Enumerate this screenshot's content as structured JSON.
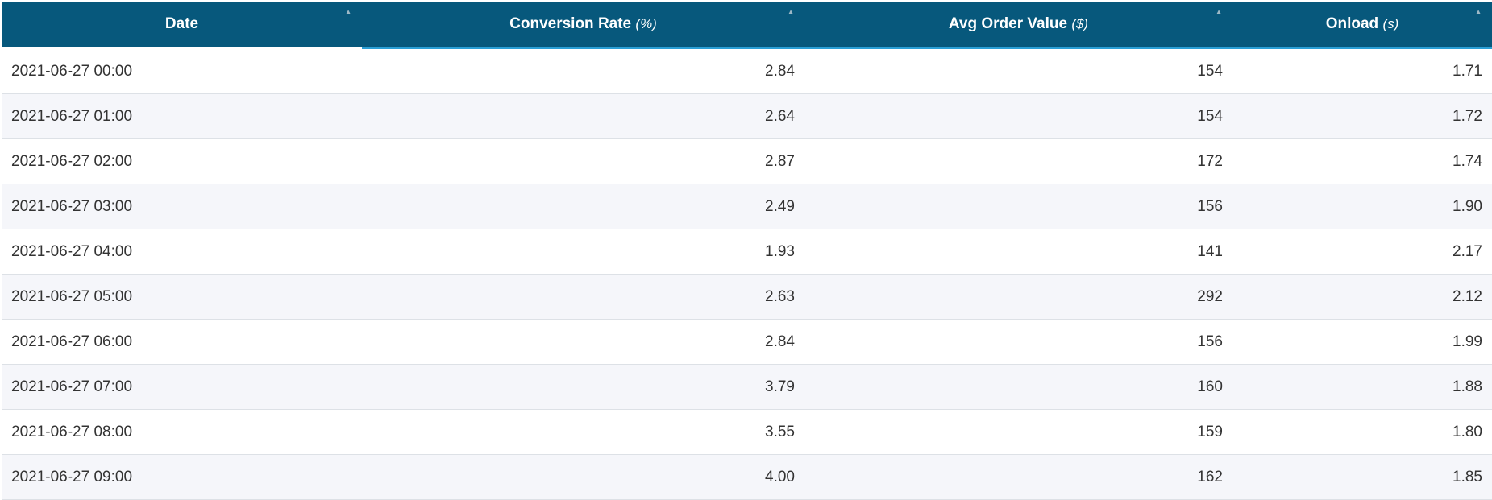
{
  "table": {
    "columns": [
      {
        "label": "Date",
        "unit": ""
      },
      {
        "label": "Conversion Rate",
        "unit": "(%)"
      },
      {
        "label": "Avg Order Value",
        "unit": "($)"
      },
      {
        "label": "Onload",
        "unit": "(s)"
      }
    ],
    "sort_icon": "▲",
    "rows": [
      [
        "2021-06-27 00:00",
        "2.84",
        "154",
        "1.71"
      ],
      [
        "2021-06-27 01:00",
        "2.64",
        "154",
        "1.72"
      ],
      [
        "2021-06-27 02:00",
        "2.87",
        "172",
        "1.74"
      ],
      [
        "2021-06-27 03:00",
        "2.49",
        "156",
        "1.90"
      ],
      [
        "2021-06-27 04:00",
        "1.93",
        "141",
        "2.17"
      ],
      [
        "2021-06-27 05:00",
        "2.63",
        "292",
        "2.12"
      ],
      [
        "2021-06-27 06:00",
        "2.84",
        "156",
        "1.99"
      ],
      [
        "2021-06-27 07:00",
        "3.79",
        "160",
        "1.88"
      ],
      [
        "2021-06-27 08:00",
        "3.55",
        "159",
        "1.80"
      ],
      [
        "2021-06-27 09:00",
        "4.00",
        "162",
        "1.85"
      ]
    ]
  },
  "colors": {
    "header_bg": "#07587c",
    "header_text": "#ffffff",
    "accent_underline": "#2a9fd6",
    "row_alt_bg": "#f5f6fa"
  }
}
